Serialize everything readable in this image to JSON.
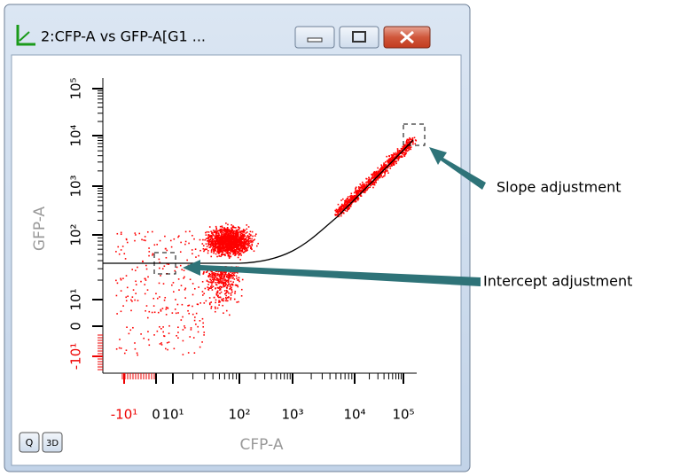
{
  "window": {
    "title": "2:CFP-A vs GFP-A[G1 ..."
  },
  "plot": {
    "y_axis_label": "GFP-A",
    "x_axis_label": "CFP-A",
    "y_ticks": [
      "10⁵",
      "10⁴",
      "10³",
      "10²",
      "10¹",
      "0",
      "-10¹"
    ],
    "x_ticks": [
      "-10¹",
      "0",
      "10¹",
      "10²",
      "10³",
      "10⁴",
      "10⁵"
    ]
  },
  "annotations": {
    "slope": "Slope adjustment",
    "intercept": "Intercept adjustment"
  },
  "buttons": [
    "Q",
    "3D"
  ]
}
